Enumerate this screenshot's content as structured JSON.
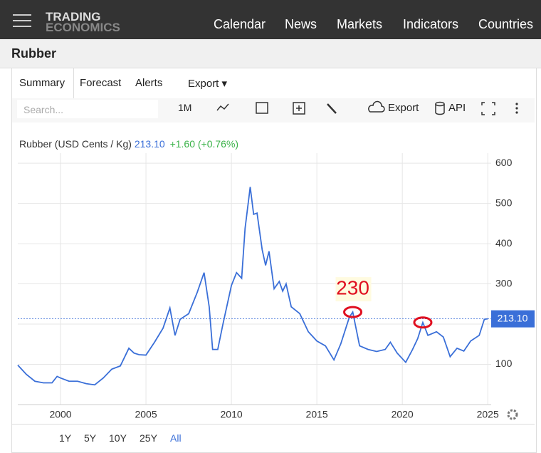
{
  "header": {
    "logo_top": "TRADING",
    "logo_bottom": "ECONOMICS",
    "nav": [
      "Calendar",
      "News",
      "Markets",
      "Indicators",
      "Countries"
    ]
  },
  "page_title": "Rubber",
  "tabs": [
    "Summary",
    "Forecast",
    "Alerts",
    "Export"
  ],
  "toolbar": {
    "search": "Search...",
    "period": "1M",
    "export": "Export",
    "api": "API"
  },
  "quote": {
    "name": "Rubber (USD Cents / Kg)",
    "price": "213.10",
    "change": "+1.60 (+0.76%)"
  },
  "ranges": [
    "1Y",
    "5Y",
    "10Y",
    "25Y",
    "All"
  ],
  "chart_data": {
    "type": "line",
    "x": [
      1997.5,
      1998,
      1998.5,
      1999,
      1999.5,
      1999.8,
      2000,
      2000.5,
      2001,
      2001.5,
      2002,
      2002.5,
      2003,
      2003.5,
      2004,
      2004.3,
      2004.6,
      2005,
      2005.5,
      2006,
      2006.4,
      2006.7,
      2007,
      2007.5,
      2008,
      2008.4,
      2008.7,
      2008.9,
      2009.2,
      2009.5,
      2010,
      2010.3,
      2010.6,
      2010.8,
      2011.1,
      2011.3,
      2011.5,
      2011.8,
      2012,
      2012.2,
      2012.5,
      2012.8,
      2013,
      2013.2,
      2013.5,
      2014,
      2014.5,
      2015,
      2015.5,
      2016,
      2016.4,
      2016.9,
      2017.1,
      2017.5,
      2018,
      2018.5,
      2019,
      2019.3,
      2019.7,
      2020.2,
      2020.6,
      2020.9,
      2021.2,
      2021.5,
      2022,
      2022.4,
      2022.8,
      2023.2,
      2023.6,
      2024,
      2024.5,
      2024.8,
      2025
    ],
    "series": [
      {
        "name": "Rubber",
        "color": "#3a6fd8",
        "values": [
          98,
          75,
          58,
          54,
          54,
          70,
          66,
          58,
          58,
          52,
          49,
          66,
          88,
          96,
          140,
          128,
          124,
          123,
          155,
          190,
          240,
          172,
          212,
          226,
          279,
          328,
          243,
          137,
          137,
          199,
          296,
          328,
          314,
          438,
          541,
          473,
          476,
          385,
          346,
          381,
          288,
          306,
          282,
          300,
          243,
          226,
          181,
          158,
          146,
          111,
          151,
          217,
          230,
          146,
          137,
          132,
          137,
          155,
          128,
          105,
          137,
          164,
          204,
          172,
          181,
          168,
          119,
          140,
          133,
          158,
          172,
          212,
          213.1
        ]
      }
    ],
    "xlim": [
      1997.5,
      2025.2
    ],
    "xticks": [
      2000,
      2005,
      2010,
      2015,
      2020,
      2025
    ],
    "ylim": [
      0,
      625
    ],
    "yticks": [
      100,
      200,
      300,
      400,
      500,
      600
    ],
    "grid": true,
    "annotation": {
      "text": "230",
      "x": 2017.1,
      "value": 230
    },
    "highlights": [
      {
        "x": 2017.1,
        "value": 230
      },
      {
        "x": 2021.2,
        "value": 204
      }
    ]
  }
}
